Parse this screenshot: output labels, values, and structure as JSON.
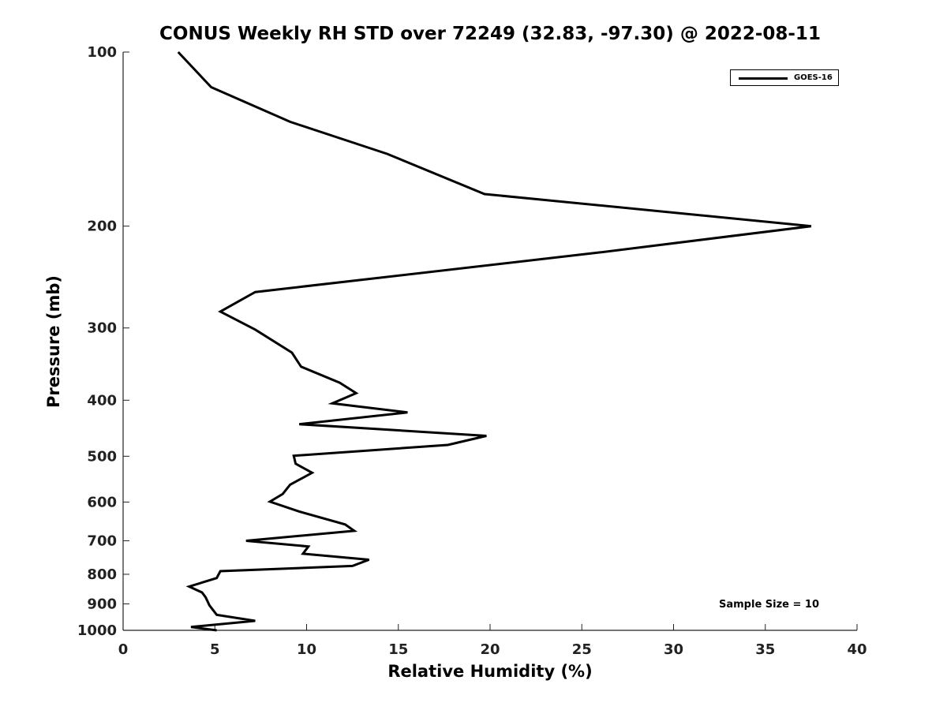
{
  "chart_data": {
    "type": "line",
    "title": "CONUS Weekly RH STD over 72249 (32.83, -97.30) @ 2022-08-11",
    "xlabel": "Relative Humidity (%)",
    "ylabel": "Pressure (mb)",
    "xlim": [
      0,
      40
    ],
    "ylim": [
      1000,
      100
    ],
    "y_scale": "log",
    "y_reversed": true,
    "x_ticks": [
      "0",
      "5",
      "10",
      "15",
      "20",
      "25",
      "30",
      "35",
      "40"
    ],
    "y_ticks": [
      "100",
      "200",
      "300",
      "400",
      "500",
      "600",
      "700",
      "800",
      "900",
      "1000"
    ],
    "grid": false,
    "legend_position": "top-right",
    "series": [
      {
        "name": "GOES-16",
        "color": "#000000",
        "x": [
          3.0,
          4.8,
          9.1,
          14.4,
          19.7,
          37.5,
          26.0,
          7.2,
          5.3,
          7.2,
          9.2,
          9.7,
          11.8,
          12.7,
          11.4,
          15.5,
          9.6,
          19.8,
          17.7,
          9.3,
          9.4,
          10.3,
          9.1,
          8.7,
          8.0,
          9.6,
          12.1,
          12.6,
          6.7,
          10.1,
          9.8,
          13.4,
          12.5,
          5.3,
          5.1,
          3.6,
          4.3,
          4.5,
          4.7,
          5.1,
          7.2,
          3.7,
          5.1
        ],
        "y": [
          100,
          115,
          132,
          150,
          176,
          200,
          222,
          260,
          281,
          302,
          331,
          350,
          373,
          389,
          405,
          420,
          440,
          461,
          478,
          499,
          515,
          534,
          560,
          581,
          599,
          623,
          656,
          673,
          700,
          716,
          737,
          755,
          774,
          790,
          812,
          840,
          860,
          877,
          905,
          940,
          963,
          987,
          1000
        ]
      }
    ],
    "annotations": [
      "Sample Size = 10"
    ]
  }
}
